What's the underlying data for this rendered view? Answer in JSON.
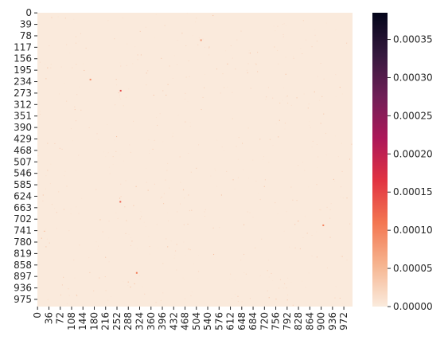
{
  "chart_data": {
    "type": "heatmap",
    "title": "",
    "xlabel": "",
    "ylabel": "",
    "rows": 1000,
    "cols": 1000,
    "x_tick_labels": [
      "0",
      "36",
      "72",
      "108",
      "144",
      "180",
      "216",
      "252",
      "288",
      "324",
      "360",
      "396",
      "432",
      "468",
      "504",
      "540",
      "576",
      "612",
      "648",
      "684",
      "720",
      "756",
      "792",
      "828",
      "864",
      "900",
      "936",
      "972"
    ],
    "y_tick_labels": [
      "0",
      "39",
      "78",
      "117",
      "156",
      "195",
      "234",
      "273",
      "312",
      "351",
      "390",
      "429",
      "468",
      "507",
      "546",
      "585",
      "624",
      "663",
      "702",
      "741",
      "780",
      "819",
      "858",
      "897",
      "936",
      "975"
    ],
    "colorbar": {
      "min": 0.0,
      "max": 0.000385,
      "tick_values": [
        0.0,
        5e-05,
        0.0001,
        0.00015,
        0.0002,
        0.00025,
        0.0003,
        0.00035
      ],
      "tick_labels": [
        "0.00000",
        "0.00005",
        "0.00010",
        "0.00015",
        "0.00020",
        "0.00025",
        "0.00030",
        "0.00035"
      ],
      "colormap": "rocket_r",
      "stops": [
        "#faebdd",
        "#f6b48f",
        "#f37651",
        "#e13342",
        "#ad1759",
        "#701f57",
        "#35193e",
        "#03051a"
      ]
    },
    "background_value": 1e-06,
    "notable_cells": [
      {
        "row": 264,
        "col": 263,
        "value": 0.00015
      },
      {
        "row": 642,
        "col": 262,
        "value": 0.00013
      },
      {
        "row": 884,
        "col": 314,
        "value": 0.00011
      },
      {
        "row": 722,
        "col": 906,
        "value": 0.0001
      },
      {
        "row": 226,
        "col": 167,
        "value": 9e-05
      },
      {
        "row": 92,
        "col": 518,
        "value": 8e-05
      }
    ]
  }
}
